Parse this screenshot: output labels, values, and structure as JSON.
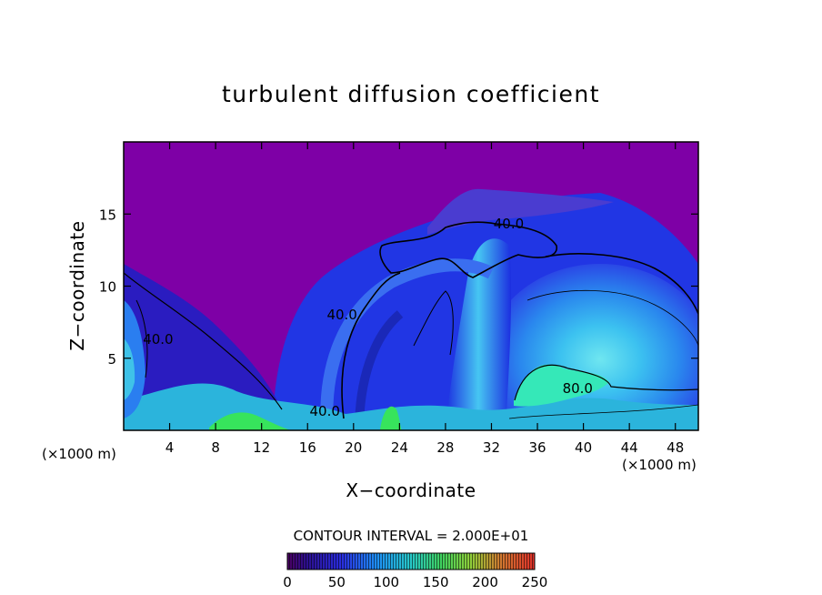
{
  "chart_data": {
    "type": "heatmap",
    "title": "turbulent diffusion coefficient",
    "xlabel": "X−coordinate",
    "ylabel": "Z−coordinate",
    "x_unit_left": "(×1000 m)",
    "x_unit_right": "(×1000 m)",
    "xlim": [
      0,
      50
    ],
    "ylim": [
      0,
      20
    ],
    "x_ticks": [
      4,
      8,
      12,
      16,
      20,
      24,
      28,
      32,
      36,
      40,
      44,
      48
    ],
    "y_ticks": [
      5,
      10,
      15
    ],
    "contour_labels": [
      {
        "text": "40.0",
        "x": 33.5,
        "y": 14.0
      },
      {
        "text": "40.0",
        "x": 19.0,
        "y": 7.7
      },
      {
        "text": "40.0",
        "x": 17.5,
        "y": 1.0
      },
      {
        "text": "40.0",
        "x": 3.0,
        "y": 6.0
      },
      {
        "text": "80.0",
        "x": 39.5,
        "y": 2.6
      }
    ],
    "contour_interval_text": "CONTOUR INTERVAL = 2.000E+01",
    "colorbar": {
      "min": 0,
      "max": 250,
      "tick_labels": [
        "0",
        "50",
        "100",
        "150",
        "200",
        "250"
      ],
      "colors": [
        "#7a00a8",
        "#2a1ee0",
        "#1e8ef5",
        "#27d8d2",
        "#3ef06a",
        "#c9e23a",
        "#f0402a"
      ]
    },
    "colors": {
      "background_field": "#7e00a6",
      "low": "#2430e6",
      "mid": "#2a8ef2",
      "high": "#30e8d0",
      "peak": "#3af060"
    }
  }
}
